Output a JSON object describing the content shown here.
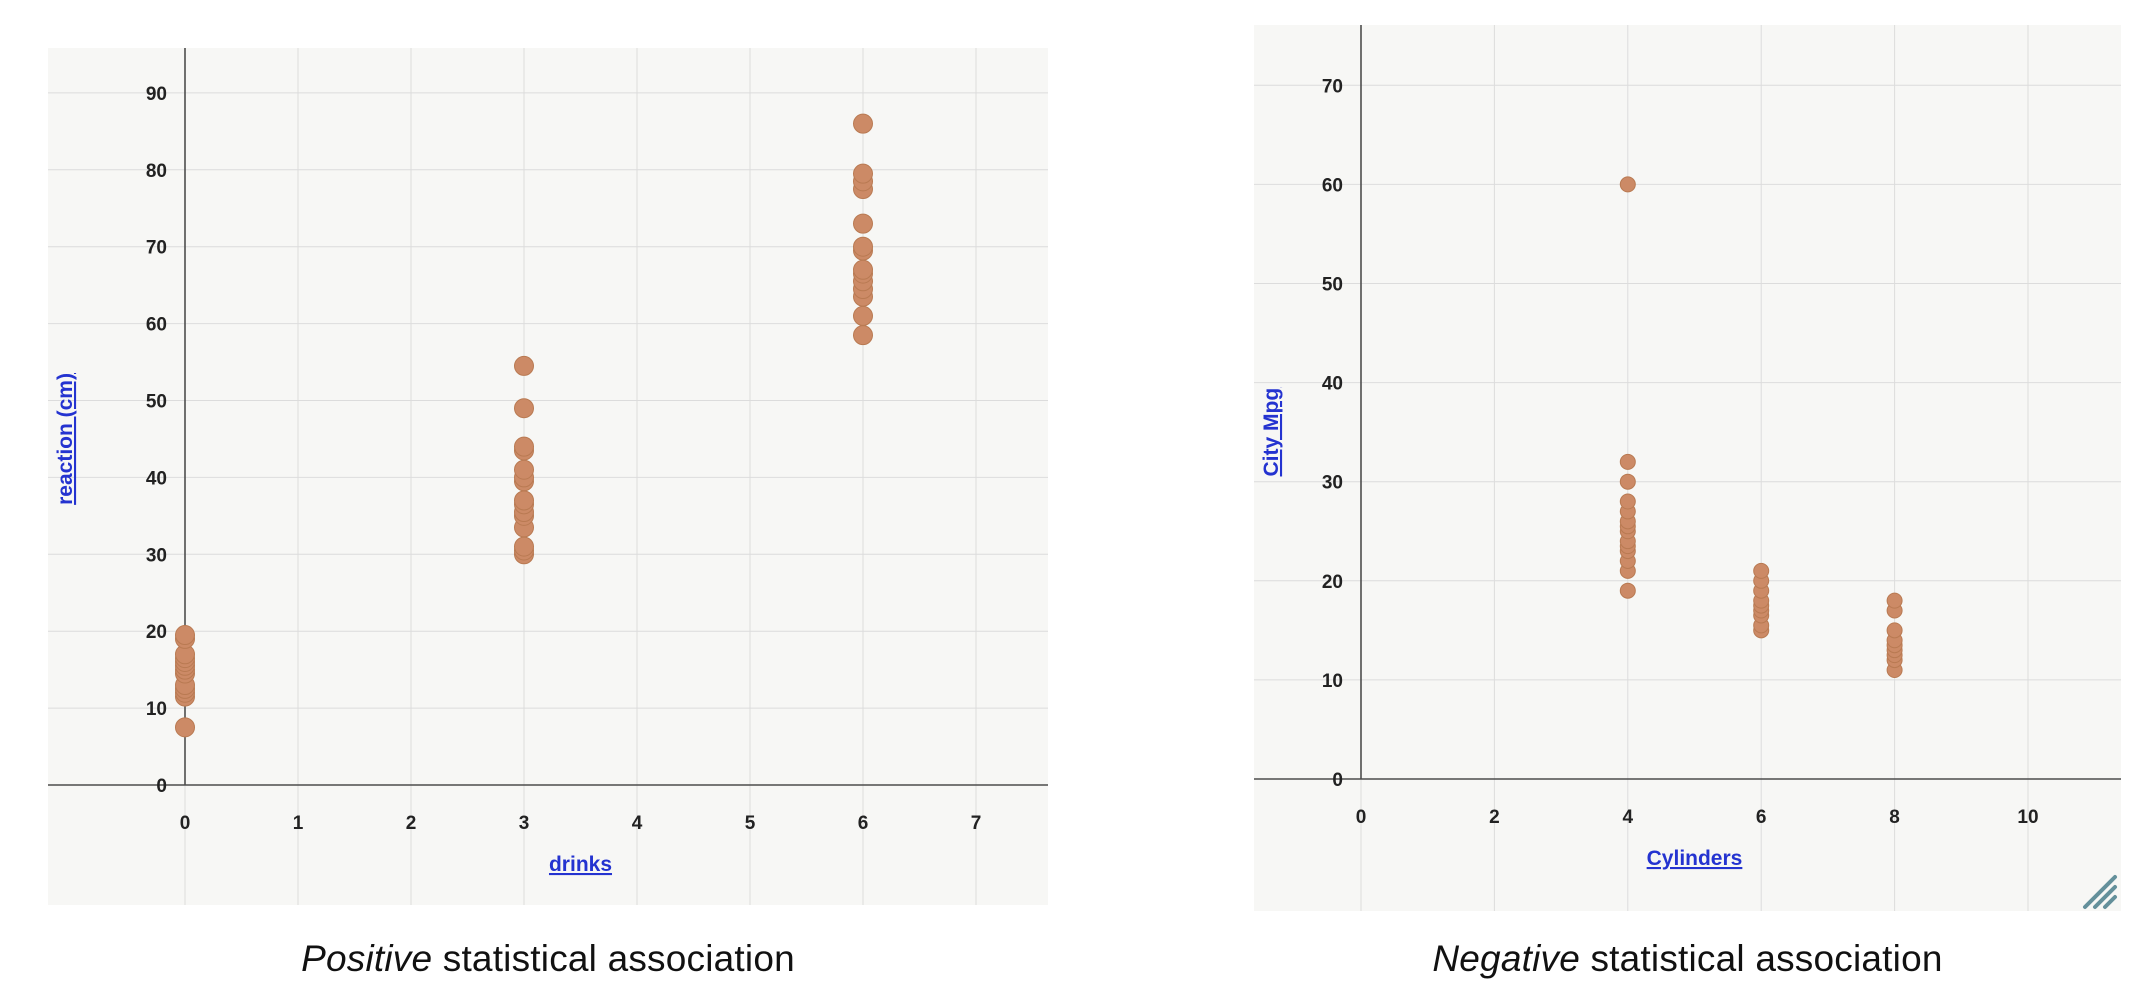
{
  "page": {
    "background": "#ffffff"
  },
  "figures": [
    {
      "caption_italic": "Positive",
      "caption_rest": " statistical association"
    },
    {
      "caption_italic": "Negative",
      "caption_rest": " statistical association"
    }
  ],
  "chart_data": [
    {
      "type": "scatter",
      "title": "Positive statistical association",
      "xlabel": "drinks",
      "ylabel": "reaction (cm)",
      "xlim": [
        -1.2,
        7.6
      ],
      "ylim": [
        -15.6,
        95.9
      ],
      "x_ticks": [
        0,
        1,
        2,
        3,
        4,
        5,
        6,
        7
      ],
      "y_ticks": [
        0,
        10,
        20,
        30,
        40,
        50,
        60,
        70,
        80,
        90
      ],
      "grid": true,
      "legend": "none",
      "colors": {
        "point": "#cc8a66",
        "point_edge": "#b97a52",
        "grid": "#dcdcdc",
        "axis": "#4d4d4d",
        "background": "#f7f7f5",
        "label": "#2433d0"
      },
      "points": [
        {
          "x": 0,
          "y": 7.5
        },
        {
          "x": 0,
          "y": 11.5
        },
        {
          "x": 0,
          "y": 12
        },
        {
          "x": 0,
          "y": 12.5
        },
        {
          "x": 0,
          "y": 13
        },
        {
          "x": 0,
          "y": 14.5
        },
        {
          "x": 0,
          "y": 15
        },
        {
          "x": 0,
          "y": 15.5
        },
        {
          "x": 0,
          "y": 16
        },
        {
          "x": 0,
          "y": 16.5
        },
        {
          "x": 0,
          "y": 17
        },
        {
          "x": 0,
          "y": 19
        },
        {
          "x": 0,
          "y": 19.5
        },
        {
          "x": 3,
          "y": 30
        },
        {
          "x": 3,
          "y": 30.5
        },
        {
          "x": 3,
          "y": 31
        },
        {
          "x": 3,
          "y": 33.5
        },
        {
          "x": 3,
          "y": 35
        },
        {
          "x": 3,
          "y": 35.5
        },
        {
          "x": 3,
          "y": 36.5
        },
        {
          "x": 3,
          "y": 37
        },
        {
          "x": 3,
          "y": 39.5
        },
        {
          "x": 3,
          "y": 40
        },
        {
          "x": 3,
          "y": 41
        },
        {
          "x": 3,
          "y": 43.5
        },
        {
          "x": 3,
          "y": 44
        },
        {
          "x": 3,
          "y": 49
        },
        {
          "x": 3,
          "y": 54.5
        },
        {
          "x": 6,
          "y": 58.5
        },
        {
          "x": 6,
          "y": 61
        },
        {
          "x": 6,
          "y": 63.5
        },
        {
          "x": 6,
          "y": 64.5
        },
        {
          "x": 6,
          "y": 65.5
        },
        {
          "x": 6,
          "y": 66.5
        },
        {
          "x": 6,
          "y": 67
        },
        {
          "x": 6,
          "y": 69.5
        },
        {
          "x": 6,
          "y": 70
        },
        {
          "x": 6,
          "y": 73
        },
        {
          "x": 6,
          "y": 77.5
        },
        {
          "x": 6,
          "y": 78.5
        },
        {
          "x": 6,
          "y": 79.5
        },
        {
          "x": 6,
          "y": 86
        }
      ]
    },
    {
      "type": "scatter",
      "title": "Negative statistical association",
      "xlabel": "Cylinders",
      "ylabel": "City Mpg",
      "xlim": [
        -1.6,
        11.4
      ],
      "ylim": [
        -13.3,
        76.1
      ],
      "x_ticks": [
        0,
        2,
        4,
        6,
        8,
        10
      ],
      "y_ticks": [
        0,
        10,
        20,
        30,
        40,
        50,
        60,
        70
      ],
      "grid": true,
      "legend": "none",
      "colors": {
        "point": "#cc8a66",
        "point_edge": "#b97a52",
        "grid": "#dcdcdc",
        "axis": "#4d4d4d",
        "background": "#f7f7f5",
        "label": "#2433d0"
      },
      "points": [
        {
          "x": 4,
          "y": 19
        },
        {
          "x": 4,
          "y": 21
        },
        {
          "x": 4,
          "y": 22
        },
        {
          "x": 4,
          "y": 23
        },
        {
          "x": 4,
          "y": 23.5
        },
        {
          "x": 4,
          "y": 24
        },
        {
          "x": 4,
          "y": 25
        },
        {
          "x": 4,
          "y": 25.5
        },
        {
          "x": 4,
          "y": 26
        },
        {
          "x": 4,
          "y": 27
        },
        {
          "x": 4,
          "y": 28
        },
        {
          "x": 4,
          "y": 30
        },
        {
          "x": 4,
          "y": 32
        },
        {
          "x": 4,
          "y": 60
        },
        {
          "x": 6,
          "y": 15
        },
        {
          "x": 6,
          "y": 15.5
        },
        {
          "x": 6,
          "y": 16.5
        },
        {
          "x": 6,
          "y": 17
        },
        {
          "x": 6,
          "y": 17.5
        },
        {
          "x": 6,
          "y": 18
        },
        {
          "x": 6,
          "y": 19
        },
        {
          "x": 6,
          "y": 20
        },
        {
          "x": 6,
          "y": 21
        },
        {
          "x": 8,
          "y": 11
        },
        {
          "x": 8,
          "y": 12
        },
        {
          "x": 8,
          "y": 12.5
        },
        {
          "x": 8,
          "y": 13
        },
        {
          "x": 8,
          "y": 13.5
        },
        {
          "x": 8,
          "y": 14
        },
        {
          "x": 8,
          "y": 15
        },
        {
          "x": 8,
          "y": 17
        },
        {
          "x": 8,
          "y": 18
        }
      ]
    }
  ],
  "resize_handle_color": "#64909b"
}
